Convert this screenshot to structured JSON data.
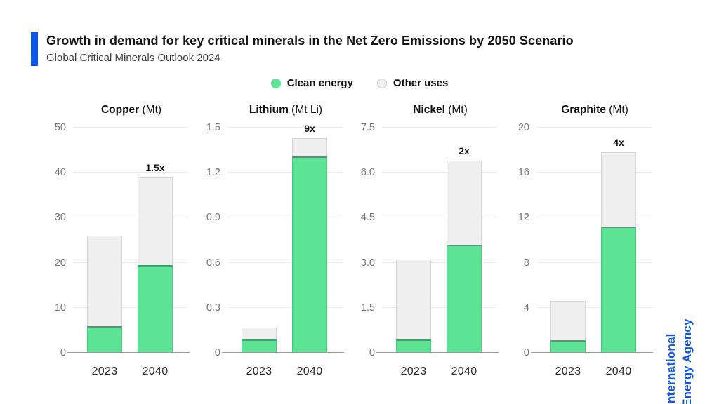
{
  "header": {
    "title": "Growth in demand for key critical minerals in the Net Zero Emissions by 2050 Scenario",
    "subtitle": "Global Critical Minerals Outlook 2024",
    "accent_color": "#0b57e7"
  },
  "legend": {
    "items": [
      {
        "label": "Clean energy",
        "color": "#5ce494"
      },
      {
        "label": "Other uses",
        "color": "#efefef"
      }
    ]
  },
  "branding": {
    "line1": "International",
    "line2": "Energy Agency",
    "color": "#0f57e6"
  },
  "colors": {
    "clean_energy": "#5ce494",
    "clean_energy_edge": "#35a871",
    "other_uses": "#efefef",
    "other_uses_border": "#d8d8d8",
    "gridline": "#ececec",
    "axis_line": "#999999",
    "tick_text": "#757575",
    "accent_blue": "#0b57e7"
  },
  "chart_data": [
    {
      "type": "bar",
      "title": "Copper",
      "unit": "(Mt)",
      "categories": [
        "2023",
        "2040"
      ],
      "ymax": 50,
      "yticks": [
        "0",
        "10",
        "20",
        "30",
        "40",
        "50"
      ],
      "series": [
        {
          "name": "Clean energy",
          "values": [
            6,
            19.5
          ]
        },
        {
          "name": "Other uses",
          "values": [
            20,
            19.5
          ]
        }
      ],
      "totals": [
        26,
        39
      ],
      "multiplier": "1.5x",
      "legend_position": "top",
      "grid": true
    },
    {
      "type": "bar",
      "title": "Lithium",
      "unit": "(Mt Li)",
      "categories": [
        "2023",
        "2040"
      ],
      "ymax": 1.5,
      "yticks": [
        "0",
        "0.3",
        "0.6",
        "0.9",
        "1.2",
        "1.5"
      ],
      "series": [
        {
          "name": "Clean energy",
          "values": [
            0.09,
            1.31
          ]
        },
        {
          "name": "Other uses",
          "values": [
            0.08,
            0.12
          ]
        }
      ],
      "totals": [
        0.17,
        1.43
      ],
      "multiplier": "9x",
      "legend_position": "top",
      "grid": true
    },
    {
      "type": "bar",
      "title": "Nickel",
      "unit": "(Mt)",
      "categories": [
        "2023",
        "2040"
      ],
      "ymax": 7.5,
      "yticks": [
        "0",
        "1.5",
        "3.0",
        "4.5",
        "6.0",
        "7.5"
      ],
      "series": [
        {
          "name": "Clean energy",
          "values": [
            0.45,
            3.6
          ]
        },
        {
          "name": "Other uses",
          "values": [
            2.65,
            2.8
          ]
        }
      ],
      "totals": [
        3.1,
        6.4
      ],
      "multiplier": "2x",
      "legend_position": "top",
      "grid": true
    },
    {
      "type": "bar",
      "title": "Graphite",
      "unit": "(Mt)",
      "categories": [
        "2023",
        "2040"
      ],
      "ymax": 20,
      "yticks": [
        "0",
        "4",
        "8",
        "12",
        "16",
        "20"
      ],
      "series": [
        {
          "name": "Clean energy",
          "values": [
            1.15,
            11.2
          ]
        },
        {
          "name": "Other uses",
          "values": [
            3.45,
            6.6
          ]
        }
      ],
      "totals": [
        4.6,
        17.8
      ],
      "multiplier": "4x",
      "legend_position": "top",
      "grid": true
    }
  ]
}
